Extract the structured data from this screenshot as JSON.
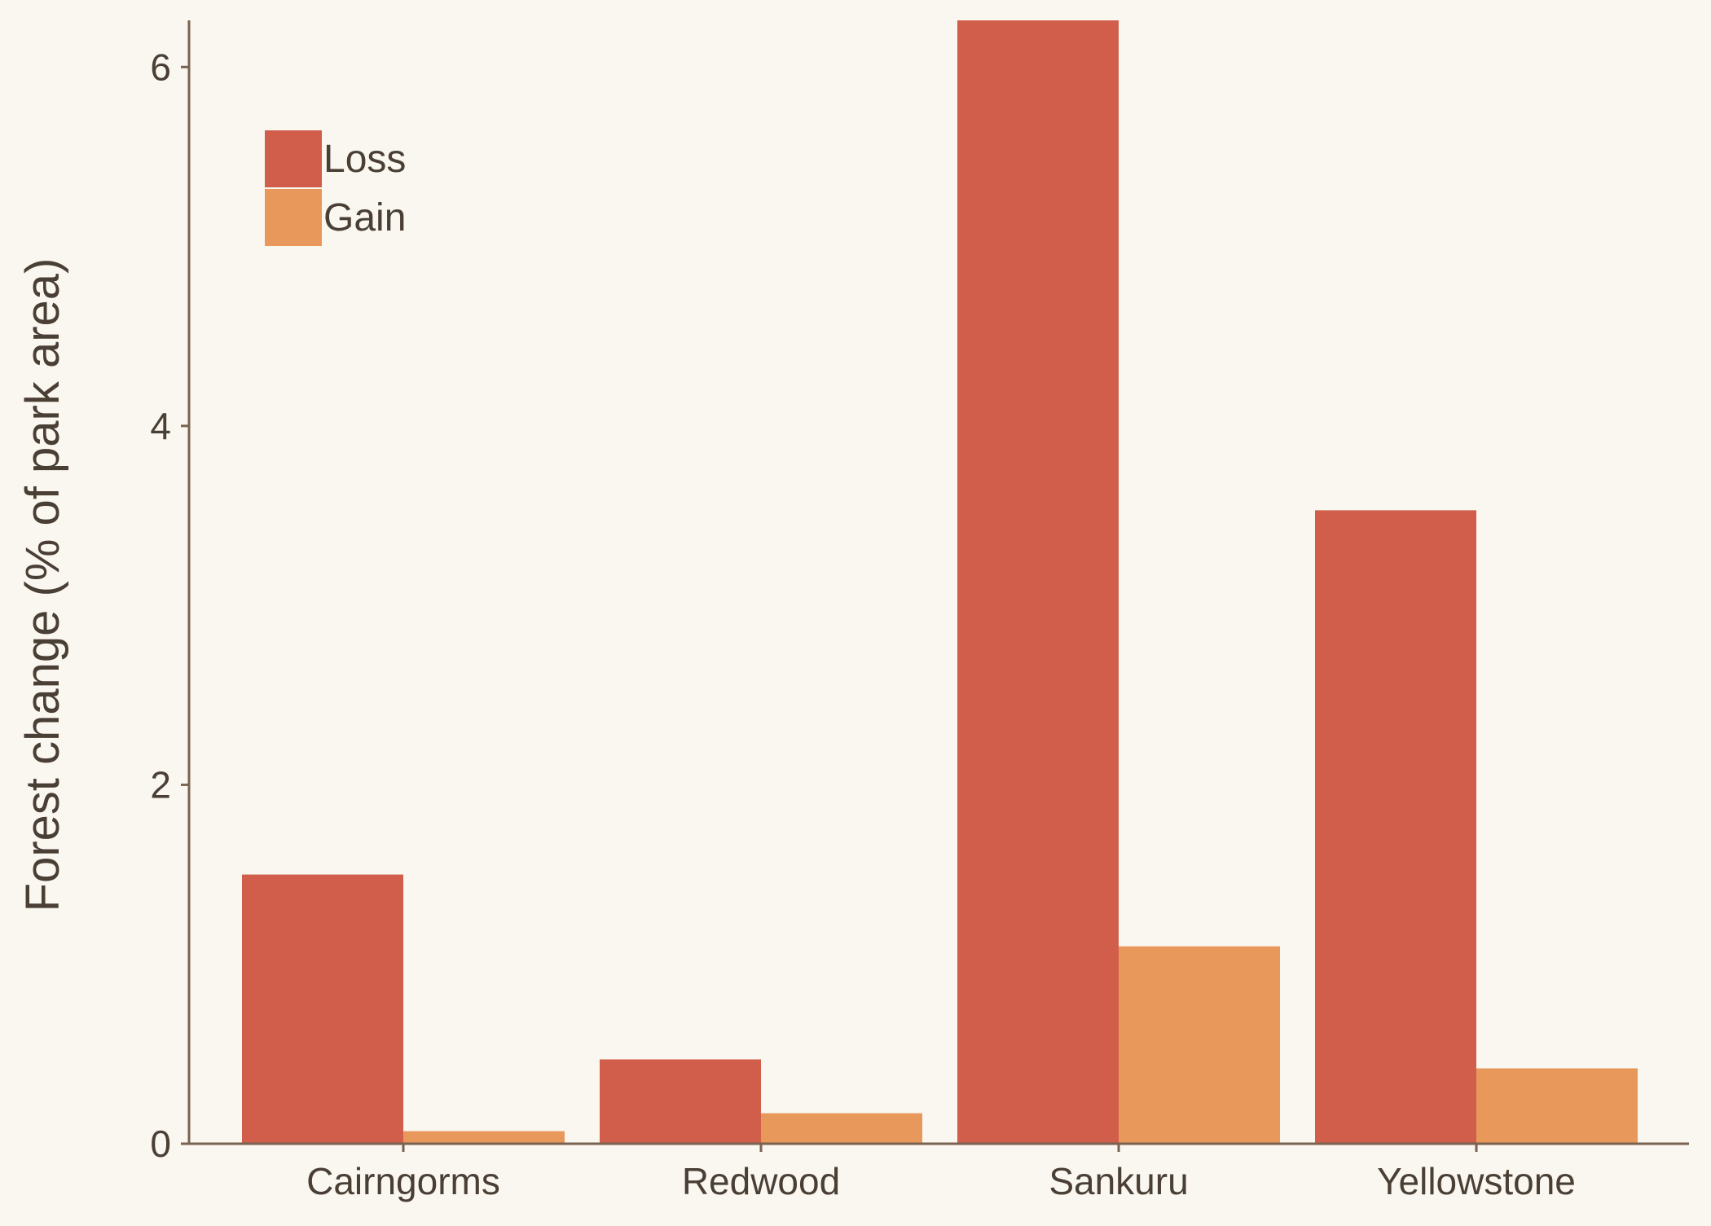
{
  "chart_data": {
    "type": "bar",
    "title": "",
    "xlabel": "",
    "ylabel": "Forest change (% of park area)",
    "categories": [
      "Cairngorms",
      "Redwood",
      "Sankuru",
      "Yellowstone"
    ],
    "series": [
      {
        "name": "Loss",
        "values": [
          1.5,
          0.47,
          6.26,
          3.53
        ],
        "color": "#d15e4b"
      },
      {
        "name": "Gain",
        "values": [
          0.07,
          0.17,
          1.1,
          0.42
        ],
        "color": "#e9985b"
      }
    ],
    "ylim": [
      0,
      6.26
    ],
    "yticks": [
      "0",
      "2",
      "4",
      "6"
    ],
    "grid": false,
    "legend_position": "top-left",
    "colors": {
      "background": "#faf6f0",
      "axis": "#7a6250",
      "text": "#4a3f35"
    }
  }
}
